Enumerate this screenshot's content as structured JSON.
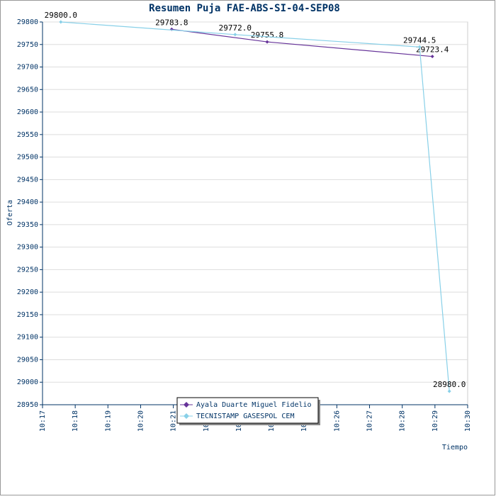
{
  "chart_data": {
    "type": "line",
    "title": "Resumen Puja FAE-ABS-SI-04-SEP08",
    "x_label": "Tiempo",
    "y_label": "Oferta",
    "xlim": [
      617,
      630
    ],
    "xticks": [
      {
        "value": 617,
        "label": "10:17"
      },
      {
        "value": 618,
        "label": "10:18"
      },
      {
        "value": 619,
        "label": "10:19"
      },
      {
        "value": 620,
        "label": "10:20"
      },
      {
        "value": 621,
        "label": "10:21"
      },
      {
        "value": 622,
        "label": "10:22"
      },
      {
        "value": 623,
        "label": "10:23"
      },
      {
        "value": 624,
        "label": "10:24"
      },
      {
        "value": 625,
        "label": "10:25"
      },
      {
        "value": 626,
        "label": "10:26"
      },
      {
        "value": 627,
        "label": "10:27"
      },
      {
        "value": 628,
        "label": "10:28"
      },
      {
        "value": 629,
        "label": "10:29"
      },
      {
        "value": 630,
        "label": "10:30"
      }
    ],
    "ylim": [
      28950,
      29800
    ],
    "yticks": [
      28950,
      29000,
      29050,
      29100,
      29150,
      29200,
      29250,
      29300,
      29350,
      29400,
      29450,
      29500,
      29550,
      29600,
      29650,
      29700,
      29750,
      29800
    ],
    "grid": true,
    "legend": "bottom",
    "series": [
      {
        "name": "Ayala Duarte Miguel Fidelio",
        "color": "#663399",
        "x": [
          620.95,
          623.87,
          628.92
        ],
        "values": [
          29783.8,
          29755.8,
          29723.4
        ],
        "value_labels": [
          "29783.8",
          "29755.8",
          "29723.4"
        ]
      },
      {
        "name": "TECNISTAMP GASESPOL CEM",
        "color": "#88d0e8",
        "x": [
          617.56,
          622.89,
          628.53,
          629.44
        ],
        "values": [
          29800,
          29772,
          29744.5,
          28980
        ],
        "value_labels": [
          "29800.0",
          "29772.0",
          "29744.5",
          "28980.0"
        ]
      }
    ]
  }
}
